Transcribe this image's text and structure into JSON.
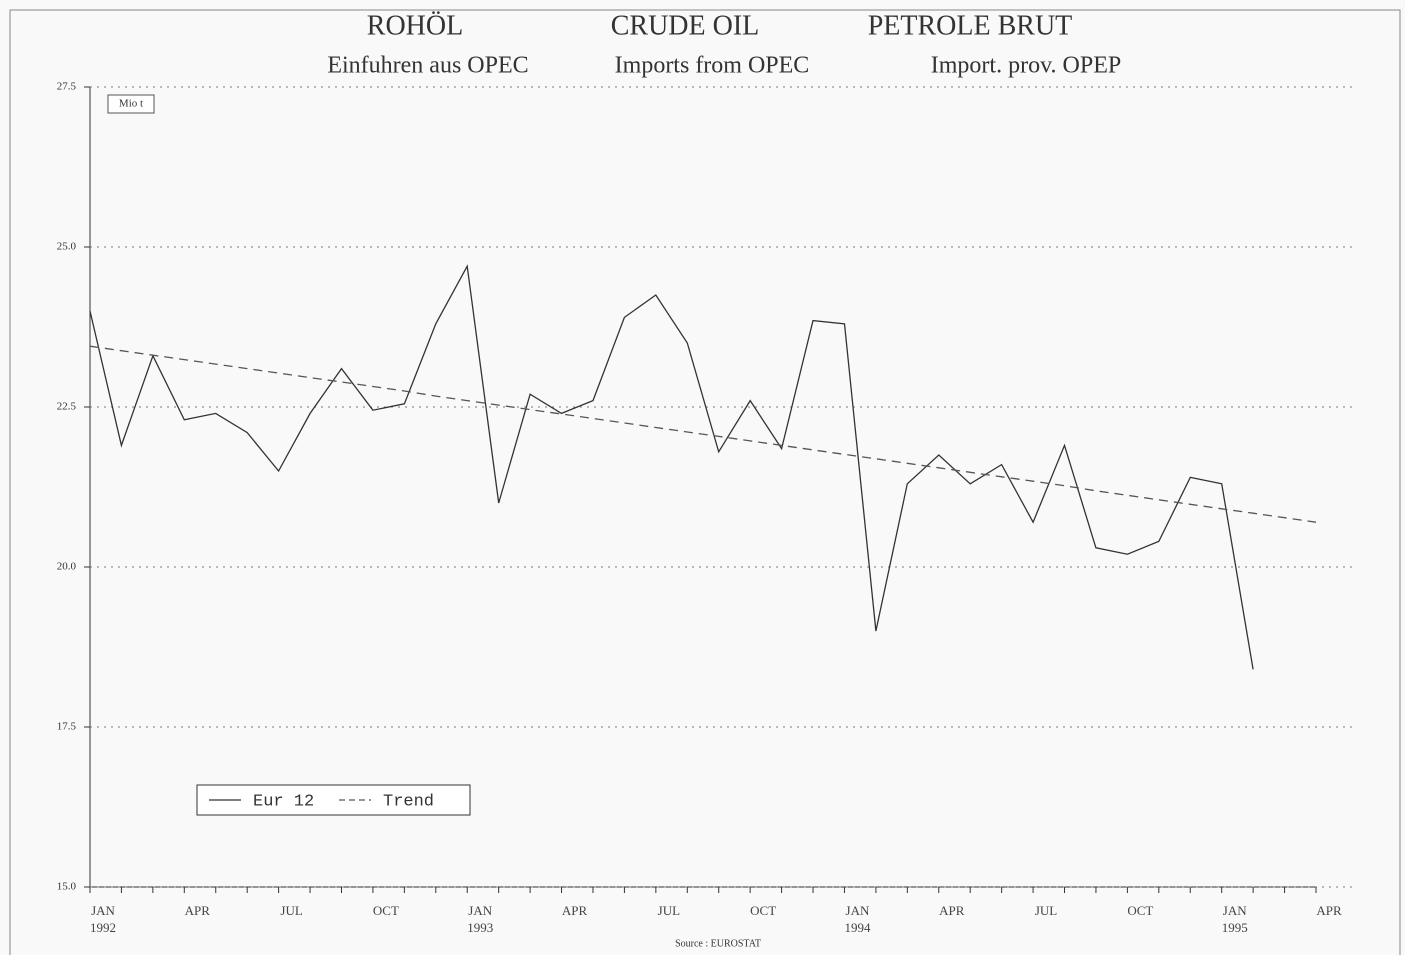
{
  "chart_data": {
    "type": "line",
    "title": [
      "ROHÖL",
      "CRUDE OIL",
      "PETROLE BRUT"
    ],
    "subtitle": [
      "Einfuhren aus OPEC",
      "Imports from OPEC",
      "Import. prov. OPEP"
    ],
    "y_unit": "Mio t",
    "source": "Source : EUROSTAT",
    "categories": [
      "JAN\n1992",
      null,
      null,
      "APR",
      null,
      null,
      "JUL",
      null,
      null,
      "OCT",
      null,
      null,
      "JAN\n1993",
      null,
      null,
      "APR",
      null,
      null,
      "JUL",
      null,
      null,
      "OCT",
      null,
      null,
      "JAN\n1994",
      null,
      null,
      "APR",
      null,
      null,
      "JUL",
      null,
      null,
      "OCT",
      null,
      null,
      "JAN\n1995",
      null,
      null,
      "APR"
    ],
    "series": [
      {
        "name": "Eur 12",
        "color": "#333333",
        "dash": false,
        "values": [
          24.0,
          21.9,
          23.3,
          22.3,
          22.4,
          22.1,
          21.5,
          22.4,
          23.1,
          22.45,
          22.55,
          23.8,
          24.7,
          21.0,
          22.7,
          22.4,
          22.6,
          23.9,
          24.25,
          23.5,
          21.8,
          22.6,
          21.85,
          23.85,
          23.8,
          19.0,
          21.3,
          21.75,
          21.3,
          21.6,
          20.7,
          21.9,
          20.3,
          20.2,
          20.4,
          21.4,
          21.3,
          18.4,
          null,
          null
        ]
      },
      {
        "name": "Trend",
        "color": "#555555",
        "dash": true,
        "values": [
          23.45,
          23.38,
          23.31,
          23.24,
          23.17,
          23.1,
          23.03,
          22.96,
          22.89,
          22.82,
          22.75,
          22.67,
          22.6,
          22.53,
          22.46,
          22.39,
          22.32,
          22.25,
          22.18,
          22.11,
          22.04,
          21.97,
          21.9,
          21.83,
          21.76,
          21.69,
          21.62,
          21.55,
          21.48,
          21.41,
          21.34,
          21.27,
          21.19,
          21.12,
          21.05,
          20.98,
          20.91,
          20.84,
          20.77,
          20.7
        ]
      }
    ],
    "ylim": [
      15,
      27.5
    ],
    "yticks": [
      {
        "value": 15,
        "label": "15.0"
      },
      17.5,
      {
        "value": 20,
        "label": "20.0"
      },
      22.5,
      {
        "value": 25,
        "label": "25.0"
      },
      27.5
    ],
    "grid": true,
    "legend": "lower left"
  }
}
